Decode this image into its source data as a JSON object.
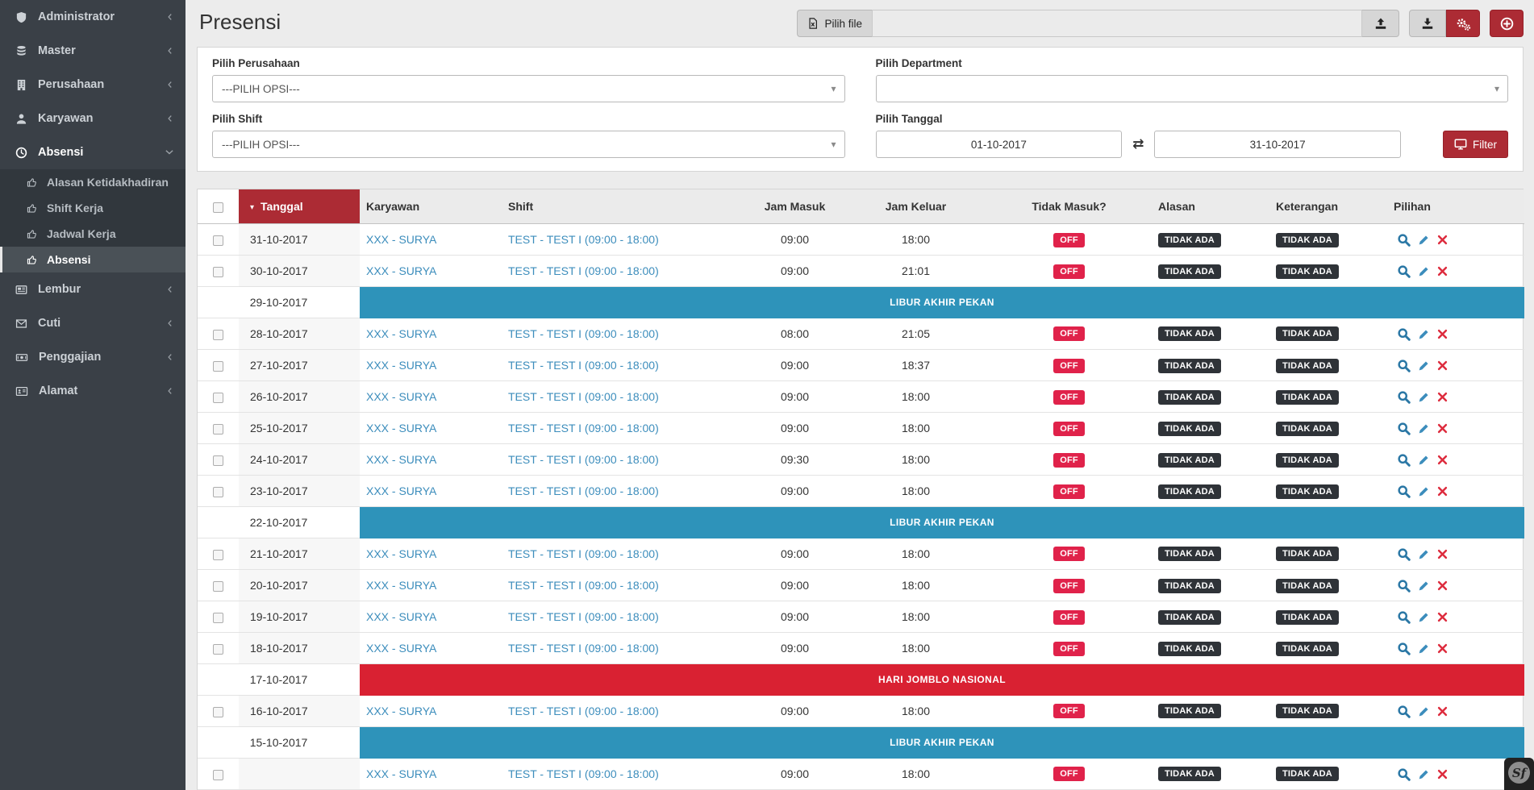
{
  "page": {
    "title": "Presensi"
  },
  "colors": {
    "theme_red": "#ac2b34",
    "theme_red_dark": "#962129",
    "badge_red": "#e0224a",
    "banner_red": "#d92132",
    "banner_blue": "#2e93ba",
    "link_blue": "#3c8dbc",
    "badge_dark": "#2f3338"
  },
  "sidebar": {
    "items": [
      {
        "label": "Administrator",
        "icon": "shield-icon"
      },
      {
        "label": "Master",
        "icon": "database-icon"
      },
      {
        "label": "Perusahaan",
        "icon": "building-icon"
      },
      {
        "label": "Karyawan",
        "icon": "user-icon"
      },
      {
        "label": "Absensi",
        "icon": "clock-icon",
        "expanded": true,
        "children": [
          {
            "label": "Alasan Ketidakhadiran",
            "icon": "thumbs-up-icon"
          },
          {
            "label": "Shift Kerja",
            "icon": "thumbs-up-icon"
          },
          {
            "label": "Jadwal Kerja",
            "icon": "thumbs-up-icon"
          },
          {
            "label": "Absensi",
            "icon": "thumbs-up-icon",
            "active": true
          }
        ]
      },
      {
        "label": "Lembur",
        "icon": "newspaper-icon"
      },
      {
        "label": "Cuti",
        "icon": "envelope-icon"
      },
      {
        "label": "Penggajian",
        "icon": "money-icon"
      },
      {
        "label": "Alamat",
        "icon": "address-card-icon"
      }
    ]
  },
  "toolbar": {
    "file_button_label": "Pilih file",
    "file_input_value": ""
  },
  "filters": {
    "perusahaan": {
      "label": "Pilih Perusahaan",
      "value": "---PILIH OPSI---"
    },
    "department": {
      "label": "Pilih Department",
      "value": ""
    },
    "shift": {
      "label": "Pilih Shift",
      "value": "---PILIH OPSI---"
    },
    "tanggal": {
      "label": "Pilih Tanggal",
      "from": "01-10-2017",
      "to": "31-10-2017"
    },
    "filter_button_label": "Filter"
  },
  "table": {
    "headers": [
      "Tanggal",
      "Karyawan",
      "Shift",
      "Jam Masuk",
      "Jam Keluar",
      "Tidak Masuk?",
      "Alasan",
      "Keterangan",
      "Pilihan"
    ],
    "sorted_column": "Tanggal",
    "sort_direction": "desc",
    "rows": [
      {
        "type": "data",
        "tanggal": "31-10-2017",
        "karyawan": "XXX - SURYA",
        "shift": "TEST - TEST I (09:00 - 18:00)",
        "jam_masuk": "09:00",
        "jam_keluar": "18:00",
        "tidak_masuk": "OFF",
        "alasan": "TIDAK ADA",
        "keterangan": "TIDAK ADA"
      },
      {
        "type": "data",
        "tanggal": "30-10-2017",
        "karyawan": "XXX - SURYA",
        "shift": "TEST - TEST I (09:00 - 18:00)",
        "jam_masuk": "09:00",
        "jam_keluar": "21:01",
        "tidak_masuk": "OFF",
        "alasan": "TIDAK ADA",
        "keterangan": "TIDAK ADA"
      },
      {
        "type": "banner",
        "tanggal": "29-10-2017",
        "label": "LIBUR AKHIR PEKAN",
        "variant": "weekend"
      },
      {
        "type": "data",
        "tanggal": "28-10-2017",
        "karyawan": "XXX - SURYA",
        "shift": "TEST - TEST I (09:00 - 18:00)",
        "jam_masuk": "08:00",
        "jam_keluar": "21:05",
        "tidak_masuk": "OFF",
        "alasan": "TIDAK ADA",
        "keterangan": "TIDAK ADA"
      },
      {
        "type": "data",
        "tanggal": "27-10-2017",
        "karyawan": "XXX - SURYA",
        "shift": "TEST - TEST I (09:00 - 18:00)",
        "jam_masuk": "09:00",
        "jam_keluar": "18:37",
        "tidak_masuk": "OFF",
        "alasan": "TIDAK ADA",
        "keterangan": "TIDAK ADA"
      },
      {
        "type": "data",
        "tanggal": "26-10-2017",
        "karyawan": "XXX - SURYA",
        "shift": "TEST - TEST I (09:00 - 18:00)",
        "jam_masuk": "09:00",
        "jam_keluar": "18:00",
        "tidak_masuk": "OFF",
        "alasan": "TIDAK ADA",
        "keterangan": "TIDAK ADA"
      },
      {
        "type": "data",
        "tanggal": "25-10-2017",
        "karyawan": "XXX - SURYA",
        "shift": "TEST - TEST I (09:00 - 18:00)",
        "jam_masuk": "09:00",
        "jam_keluar": "18:00",
        "tidak_masuk": "OFF",
        "alasan": "TIDAK ADA",
        "keterangan": "TIDAK ADA"
      },
      {
        "type": "data",
        "tanggal": "24-10-2017",
        "karyawan": "XXX - SURYA",
        "shift": "TEST - TEST I (09:00 - 18:00)",
        "jam_masuk": "09:30",
        "jam_keluar": "18:00",
        "tidak_masuk": "OFF",
        "alasan": "TIDAK ADA",
        "keterangan": "TIDAK ADA"
      },
      {
        "type": "data",
        "tanggal": "23-10-2017",
        "karyawan": "XXX - SURYA",
        "shift": "TEST - TEST I (09:00 - 18:00)",
        "jam_masuk": "09:00",
        "jam_keluar": "18:00",
        "tidak_masuk": "OFF",
        "alasan": "TIDAK ADA",
        "keterangan": "TIDAK ADA"
      },
      {
        "type": "banner",
        "tanggal": "22-10-2017",
        "label": "LIBUR AKHIR PEKAN",
        "variant": "weekend"
      },
      {
        "type": "data",
        "tanggal": "21-10-2017",
        "karyawan": "XXX - SURYA",
        "shift": "TEST - TEST I (09:00 - 18:00)",
        "jam_masuk": "09:00",
        "jam_keluar": "18:00",
        "tidak_masuk": "OFF",
        "alasan": "TIDAK ADA",
        "keterangan": "TIDAK ADA"
      },
      {
        "type": "data",
        "tanggal": "20-10-2017",
        "karyawan": "XXX - SURYA",
        "shift": "TEST - TEST I (09:00 - 18:00)",
        "jam_masuk": "09:00",
        "jam_keluar": "18:00",
        "tidak_masuk": "OFF",
        "alasan": "TIDAK ADA",
        "keterangan": "TIDAK ADA"
      },
      {
        "type": "data",
        "tanggal": "19-10-2017",
        "karyawan": "XXX - SURYA",
        "shift": "TEST - TEST I (09:00 - 18:00)",
        "jam_masuk": "09:00",
        "jam_keluar": "18:00",
        "tidak_masuk": "OFF",
        "alasan": "TIDAK ADA",
        "keterangan": "TIDAK ADA"
      },
      {
        "type": "data",
        "tanggal": "18-10-2017",
        "karyawan": "XXX - SURYA",
        "shift": "TEST - TEST I (09:00 - 18:00)",
        "jam_masuk": "09:00",
        "jam_keluar": "18:00",
        "tidak_masuk": "OFF",
        "alasan": "TIDAK ADA",
        "keterangan": "TIDAK ADA"
      },
      {
        "type": "banner",
        "tanggal": "17-10-2017",
        "label": "HARI JOMBLO NASIONAL",
        "variant": "holiday"
      },
      {
        "type": "data",
        "tanggal": "16-10-2017",
        "karyawan": "XXX - SURYA",
        "shift": "TEST - TEST I (09:00 - 18:00)",
        "jam_masuk": "09:00",
        "jam_keluar": "18:00",
        "tidak_masuk": "OFF",
        "alasan": "TIDAK ADA",
        "keterangan": "TIDAK ADA"
      },
      {
        "type": "banner",
        "tanggal": "15-10-2017",
        "label": "LIBUR AKHIR PEKAN",
        "variant": "weekend"
      },
      {
        "type": "data",
        "tanggal": "",
        "karyawan": "XXX - SURYA",
        "shift": "TEST - TEST I (09:00 - 18:00)",
        "jam_masuk": "09:00",
        "jam_keluar": "18:00",
        "tidak_masuk": "OFF",
        "alasan": "TIDAK ADA",
        "keterangan": "TIDAK ADA"
      }
    ]
  },
  "widgets": {
    "symfony_label": "Sf"
  }
}
